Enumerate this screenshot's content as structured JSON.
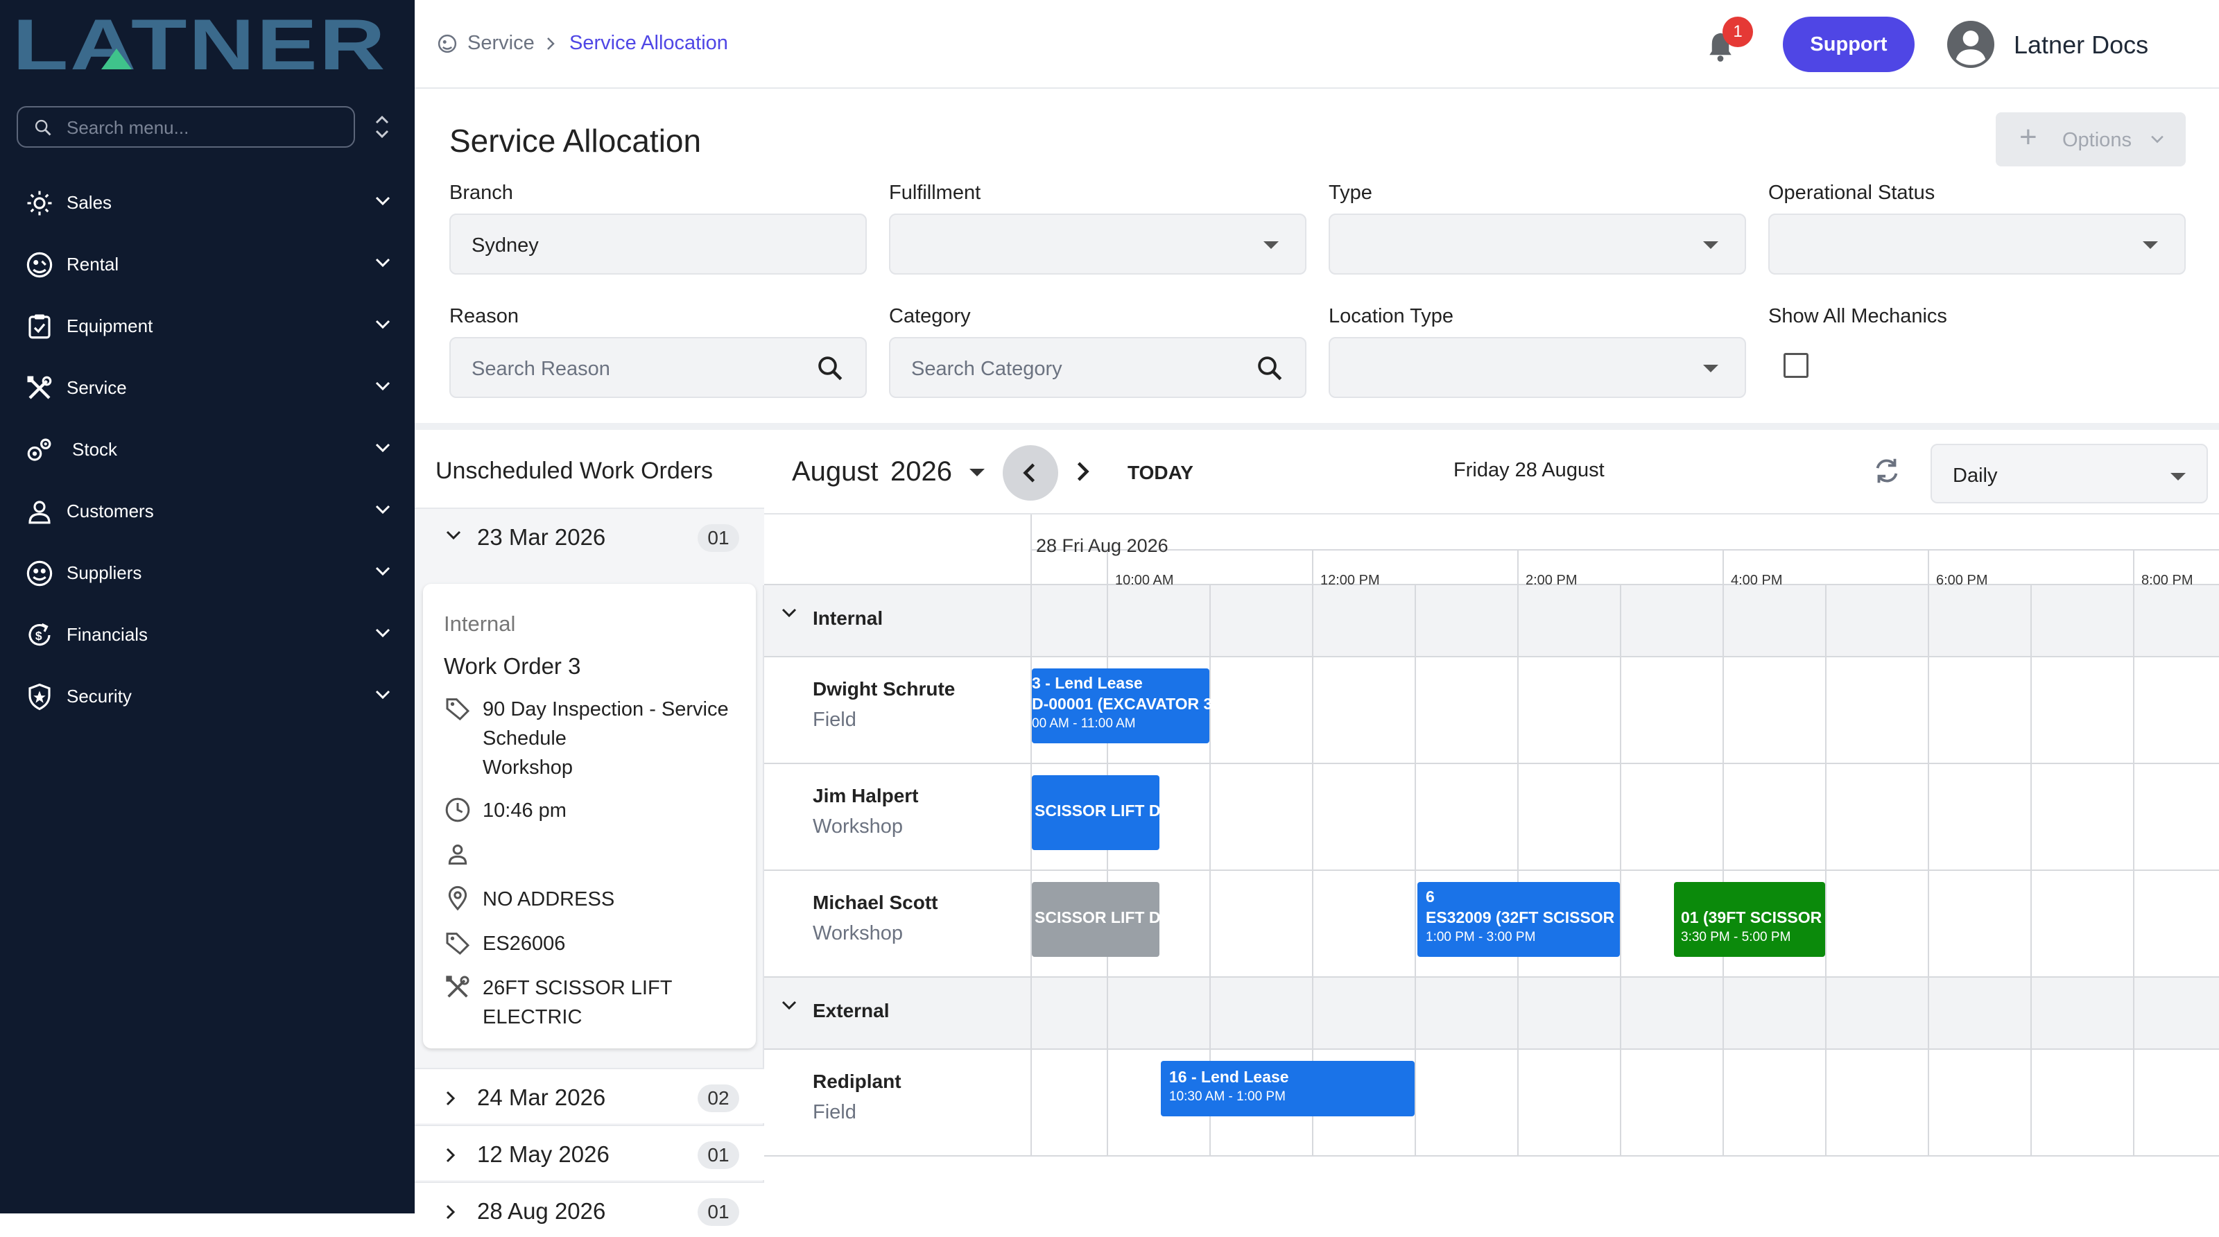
{
  "brand": {
    "logo_text": "LATNER"
  },
  "sidebar": {
    "search_placeholder": "Search menu...",
    "items": [
      {
        "label": "Sales",
        "icon": "sales-icon"
      },
      {
        "label": "Rental",
        "icon": "rental-icon"
      },
      {
        "label": "Equipment",
        "icon": "equipment-icon"
      },
      {
        "label": "Service",
        "icon": "service-icon"
      },
      {
        "label": "Stock",
        "icon": "stock-icon"
      },
      {
        "label": "Customers",
        "icon": "customers-icon"
      },
      {
        "label": "Suppliers",
        "icon": "suppliers-icon"
      },
      {
        "label": "Financials",
        "icon": "financials-icon"
      },
      {
        "label": "Security",
        "icon": "security-icon"
      }
    ]
  },
  "header": {
    "breadcrumb": [
      "Service",
      "Service Allocation"
    ],
    "notification_count": "1",
    "support_label": "Support",
    "user_name": "Latner Docs"
  },
  "page": {
    "title": "Service Allocation",
    "options_label": "Options"
  },
  "filters": {
    "branch": {
      "label": "Branch",
      "value": "Sydney"
    },
    "fulfillment": {
      "label": "Fulfillment",
      "value": ""
    },
    "type": {
      "label": "Type",
      "value": ""
    },
    "operational_status": {
      "label": "Operational Status",
      "value": ""
    },
    "reason": {
      "label": "Reason",
      "placeholder": "Search Reason"
    },
    "category": {
      "label": "Category",
      "placeholder": "Search Category"
    },
    "location_type": {
      "label": "Location Type",
      "value": ""
    },
    "show_all_mechanics": {
      "label": "Show All Mechanics",
      "checked": false
    }
  },
  "unscheduled": {
    "title": "Unscheduled Work Orders",
    "groups": [
      {
        "date": "23 Mar 2026",
        "count": "01",
        "expanded": true
      },
      {
        "date": "24 Mar 2026",
        "count": "02",
        "expanded": false
      },
      {
        "date": "12 May 2026",
        "count": "01",
        "expanded": false
      },
      {
        "date": "28 Aug 2026",
        "count": "01",
        "expanded": false
      }
    ],
    "card": {
      "type": "Internal",
      "title": "Work Order 3",
      "service_line1": "90 Day Inspection - Service",
      "service_line2": "Schedule",
      "service_line3": "Workshop",
      "time": "10:46 pm",
      "assignee": "",
      "address": "NO ADDRESS",
      "equipment_code": "ES26006",
      "equipment_line1": "26FT SCISSOR LIFT",
      "equipment_line2": "ELECTRIC"
    }
  },
  "calendar": {
    "month": "August",
    "year": "2026",
    "today_label": "TODAY",
    "date_label": "Friday 28 August",
    "view": "Daily",
    "day_label": "28 Fri Aug 2026",
    "time_labels": [
      "10:00 AM",
      "12:00 PM",
      "2:00 PM",
      "4:00 PM",
      "6:00 PM",
      "8:00 PM"
    ],
    "groups": [
      {
        "name": "Internal",
        "resources": [
          {
            "name": "Dwight Schrute",
            "type": "Field"
          },
          {
            "name": "Jim Halpert",
            "type": "Workshop"
          },
          {
            "name": "Michael Scott",
            "type": "Workshop"
          }
        ]
      },
      {
        "name": "External",
        "resources": [
          {
            "name": "Rediplant",
            "type": "Field"
          }
        ]
      }
    ],
    "events": [
      {
        "line1": "3 - Lend Lease",
        "line2": "D-00001 (EXCAVATOR 3",
        "line3": "00 AM - 11:00 AM",
        "color": "#1a73e8"
      },
      {
        "line1": "SCISSOR LIFT DI",
        "line2": "",
        "line3": "",
        "color": "#1a73e8"
      },
      {
        "line1": "SCISSOR LIFT DI",
        "line2": "",
        "line3": "",
        "color": "#9aa0a6"
      },
      {
        "line1": "6",
        "line2": "ES32009 (32FT SCISSOR",
        "line3": "1:00 PM - 3:00 PM",
        "color": "#1a73e8"
      },
      {
        "line1": "01 (39FT SCISSOR",
        "line2": "",
        "line3": "3:30 PM - 5:00 PM",
        "color": "#0b8a0b"
      },
      {
        "line1": "16 - Lend Lease",
        "line2": "",
        "line3": "10:30 AM - 1:00 PM",
        "color": "#1a73e8"
      }
    ]
  },
  "colors": {
    "sidebar_bg": "#0f1a2e",
    "accent": "#4f46e5",
    "logo_accent": "#3fc38b",
    "event_blue": "#1a73e8",
    "event_green": "#0b8a0b",
    "event_grey": "#9aa0a6"
  }
}
